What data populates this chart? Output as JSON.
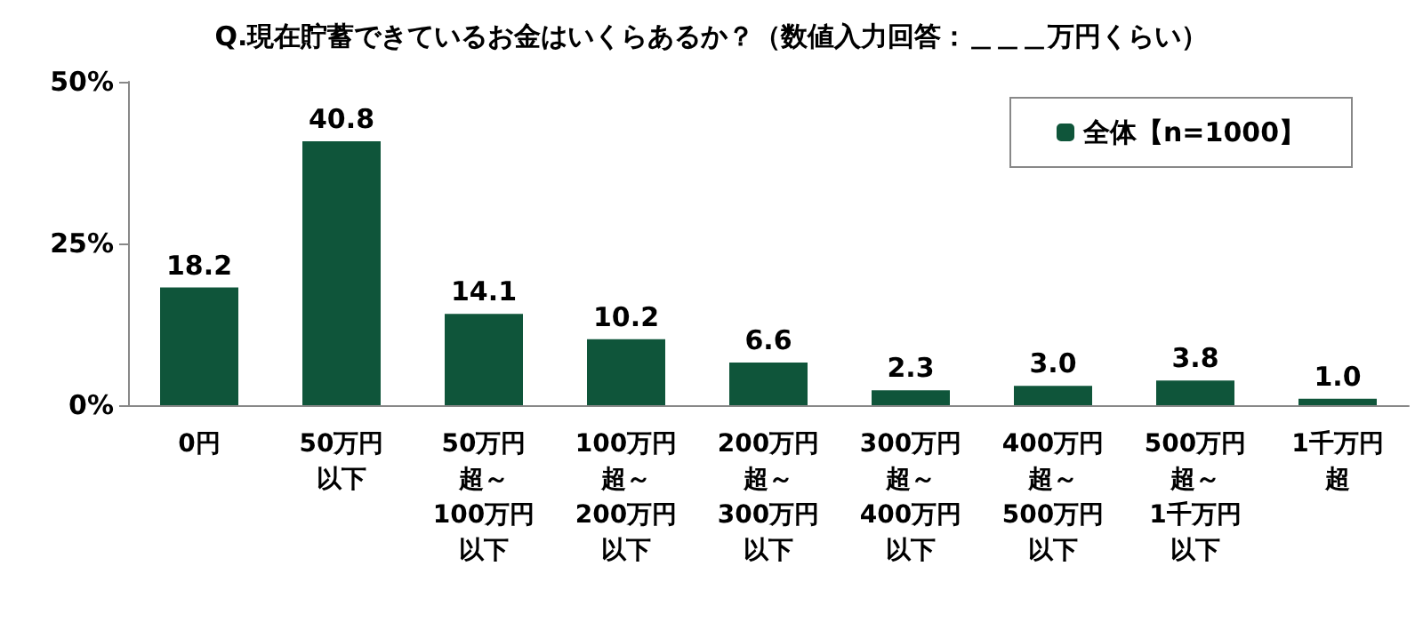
{
  "chart_data": {
    "type": "bar",
    "title": "Q.現在貯蓄できているお金はいくらあるか？（数値入力回答：＿＿＿万円くらい）",
    "categories": [
      "0円",
      "50万円以下",
      "50万円超～100万円以下",
      "100万円超～200万円以下",
      "200万円超～300万円以下",
      "300万円超～400万円以下",
      "400万円超～500万円以下",
      "500万円超～1千万円以下",
      "1千万円超"
    ],
    "series": [
      {
        "name": "全体【n=1000】",
        "color": "#0f553a",
        "values": [
          18.2,
          40.8,
          14.1,
          10.2,
          6.6,
          2.3,
          3.0,
          3.8,
          1.0
        ],
        "value_labels": [
          "18.2",
          "40.8",
          "14.1",
          "10.2",
          "6.6",
          "2.3",
          "3.0",
          "3.8",
          "1.0"
        ]
      }
    ],
    "ylim": [
      0,
      50
    ],
    "yticks": [
      {
        "value": 0,
        "label": "0%"
      },
      {
        "value": 25,
        "label": "25%"
      },
      {
        "value": 50,
        "label": "50%"
      }
    ],
    "legend": "top right",
    "grid": false
  }
}
